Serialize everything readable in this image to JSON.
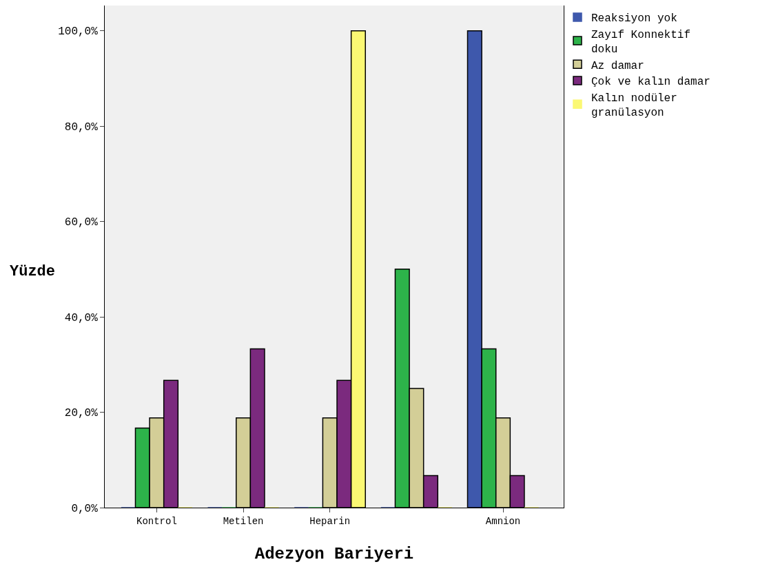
{
  "chart_data": {
    "type": "bar",
    "xlabel": "Adezyon Bariyeri",
    "ylabel": "Yüzde",
    "categories": [
      "Kontrol",
      "Metilen",
      "Heparin",
      null,
      "Amnion"
    ],
    "series": [
      {
        "name": "Reaksiyon yok",
        "color": "#3e58ac",
        "values": [
          0,
          0,
          0,
          0,
          100
        ]
      },
      {
        "name": "Zayıf Konnektif doku",
        "color": "#2db34a",
        "values": [
          16.7,
          0,
          0,
          50,
          33.3
        ]
      },
      {
        "name": "Az damar",
        "color": "#d3ce97",
        "values": [
          18.8,
          18.8,
          18.8,
          25,
          18.8
        ]
      },
      {
        "name": "Çok ve kalın damar",
        "color": "#7b2a7e",
        "values": [
          26.7,
          33.3,
          26.7,
          6.7,
          6.7
        ]
      },
      {
        "name": "Kalın nodüler granülasyon",
        "color": "#fbf873",
        "values": [
          0,
          0,
          100,
          0,
          0
        ]
      }
    ],
    "ylim": [
      0,
      105.3
    ],
    "yticks": [
      {
        "value": 0,
        "label": "0,0%"
      },
      {
        "value": 20,
        "label": "20,0%"
      },
      {
        "value": 40,
        "label": "40,0%"
      },
      {
        "value": 60,
        "label": "60,0%"
      },
      {
        "value": 80,
        "label": "80,0%"
      },
      {
        "value": 100,
        "label": "100,0%"
      }
    ],
    "grid": false,
    "legend": "top right"
  }
}
